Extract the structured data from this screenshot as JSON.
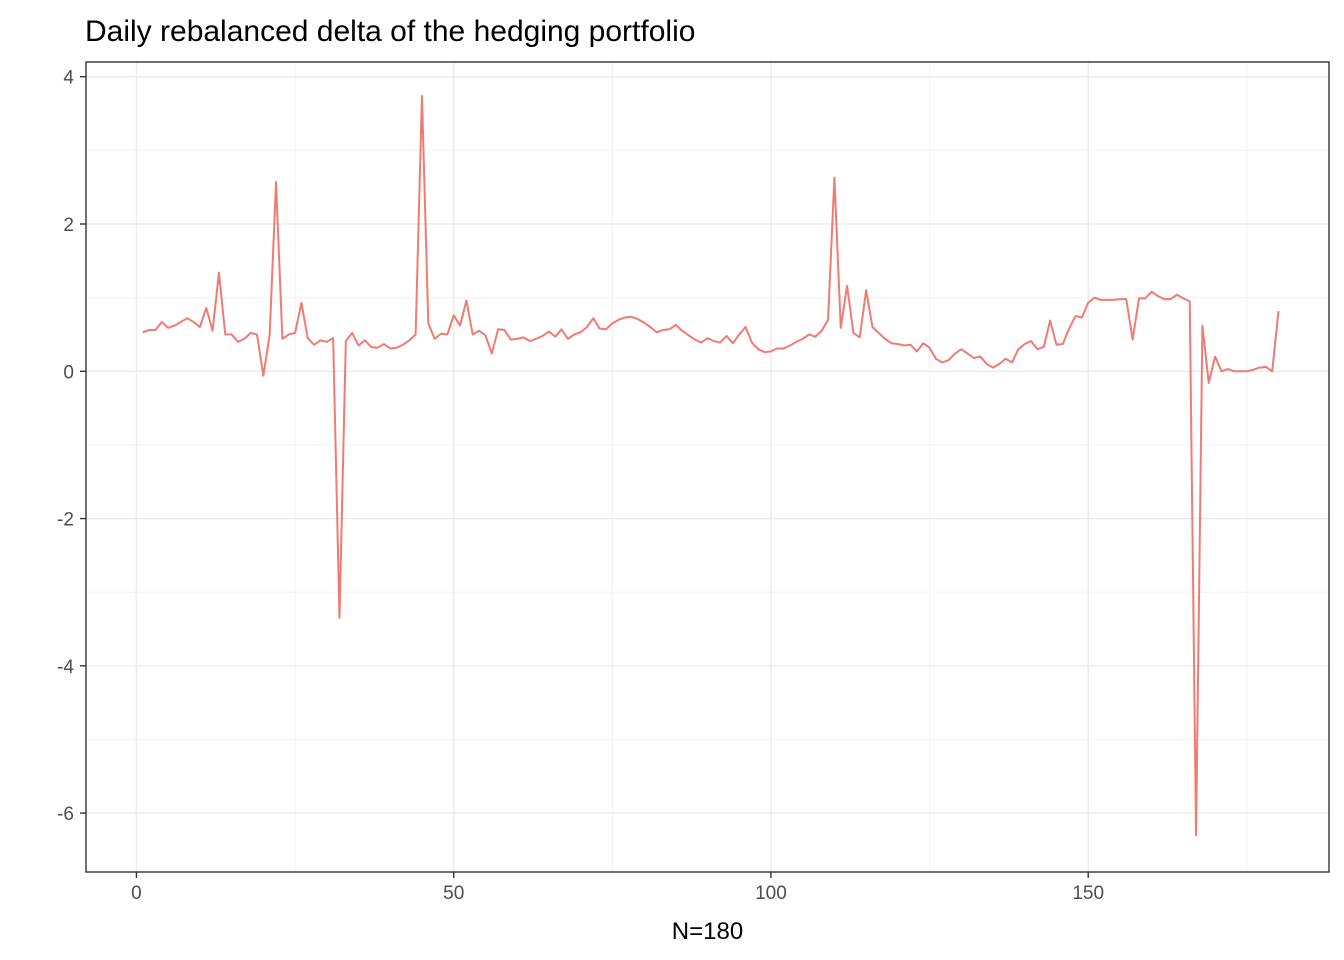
{
  "chart_data": {
    "type": "line",
    "title": "Daily rebalanced delta of the hedging portfolio",
    "xlabel": "N=180",
    "ylabel": "",
    "xlim": [
      -7.95,
      187.95
    ],
    "ylim": [
      -6.8,
      4.2
    ],
    "x_ticks": [
      0,
      50,
      100,
      150
    ],
    "y_ticks": [
      -6,
      -4,
      -2,
      0,
      2,
      4
    ],
    "x_tick_labels": [
      "0",
      "50",
      "100",
      "150"
    ],
    "y_tick_labels": [
      "-6",
      "-4",
      "-2",
      "0",
      "2",
      "4"
    ],
    "grid": true,
    "legend": "none",
    "series": [
      {
        "color": "#f07b72",
        "x": [
          1,
          2,
          3,
          4,
          5,
          6,
          7,
          8,
          9,
          10,
          11,
          12,
          13,
          14,
          15,
          16,
          17,
          18,
          19,
          20,
          21,
          22,
          23,
          24,
          25,
          26,
          27,
          28,
          29,
          30,
          31,
          32,
          33,
          34,
          35,
          36,
          37,
          38,
          39,
          40,
          41,
          42,
          43,
          44,
          45,
          46,
          47,
          48,
          49,
          50,
          51,
          52,
          53,
          54,
          55,
          56,
          57,
          58,
          59,
          60,
          61,
          62,
          63,
          64,
          65,
          66,
          67,
          68,
          69,
          70,
          71,
          72,
          73,
          74,
          75,
          76,
          77,
          78,
          79,
          80,
          81,
          82,
          83,
          84,
          85,
          86,
          87,
          88,
          89,
          90,
          91,
          92,
          93,
          94,
          95,
          96,
          97,
          98,
          99,
          100,
          101,
          102,
          103,
          104,
          105,
          106,
          107,
          108,
          109,
          110,
          111,
          112,
          113,
          114,
          115,
          116,
          117,
          118,
          119,
          120,
          121,
          122,
          123,
          124,
          125,
          126,
          127,
          128,
          129,
          130,
          131,
          132,
          133,
          134,
          135,
          136,
          137,
          138,
          139,
          140,
          141,
          142,
          143,
          144,
          145,
          146,
          147,
          148,
          149,
          150,
          151,
          152,
          153,
          154,
          155,
          156,
          157,
          158,
          159,
          160,
          161,
          162,
          163,
          164,
          165,
          166,
          167,
          168,
          169,
          170,
          171,
          172,
          173,
          174,
          175,
          176,
          177,
          178,
          179,
          180
        ],
        "y": [
          0.53,
          0.56,
          0.56,
          0.67,
          0.59,
          0.62,
          0.67,
          0.72,
          0.67,
          0.6,
          0.86,
          0.55,
          1.34,
          0.5,
          0.5,
          0.4,
          0.44,
          0.52,
          0.5,
          -0.06,
          0.5,
          2.57,
          0.44,
          0.5,
          0.52,
          0.93,
          0.45,
          0.36,
          0.42,
          0.4,
          0.45,
          -3.35,
          0.41,
          0.52,
          0.35,
          0.42,
          0.33,
          0.32,
          0.37,
          0.31,
          0.32,
          0.36,
          0.42,
          0.5,
          3.74,
          0.65,
          0.44,
          0.51,
          0.5,
          0.76,
          0.62,
          0.96,
          0.5,
          0.55,
          0.49,
          0.24,
          0.57,
          0.56,
          0.43,
          0.44,
          0.46,
          0.41,
          0.44,
          0.48,
          0.54,
          0.47,
          0.57,
          0.44,
          0.5,
          0.53,
          0.6,
          0.72,
          0.58,
          0.57,
          0.65,
          0.7,
          0.73,
          0.74,
          0.71,
          0.66,
          0.6,
          0.53,
          0.56,
          0.57,
          0.63,
          0.55,
          0.49,
          0.43,
          0.39,
          0.45,
          0.41,
          0.39,
          0.48,
          0.38,
          0.5,
          0.6,
          0.39,
          0.3,
          0.26,
          0.27,
          0.31,
          0.31,
          0.35,
          0.4,
          0.44,
          0.5,
          0.47,
          0.55,
          0.7,
          2.63,
          0.59,
          1.16,
          0.52,
          0.46,
          1.1,
          0.6,
          0.52,
          0.44,
          0.38,
          0.37,
          0.35,
          0.36,
          0.27,
          0.38,
          0.32,
          0.17,
          0.12,
          0.15,
          0.24,
          0.3,
          0.24,
          0.18,
          0.2,
          0.1,
          0.05,
          0.1,
          0.17,
          0.12,
          0.3,
          0.37,
          0.41,
          0.3,
          0.33,
          0.69,
          0.36,
          0.37,
          0.58,
          0.75,
          0.73,
          0.93,
          1.0,
          0.97,
          0.97,
          0.97,
          0.98,
          0.98,
          0.43,
          0.99,
          0.99,
          1.08,
          1.02,
          0.98,
          0.98,
          1.04,
          0.99,
          0.95,
          -6.3,
          0.62,
          -0.16,
          0.2,
          0.0,
          0.03,
          0.0,
          0.0,
          0.0,
          0.02,
          0.05,
          0.06,
          0.0,
          0.82
        ]
      }
    ]
  }
}
